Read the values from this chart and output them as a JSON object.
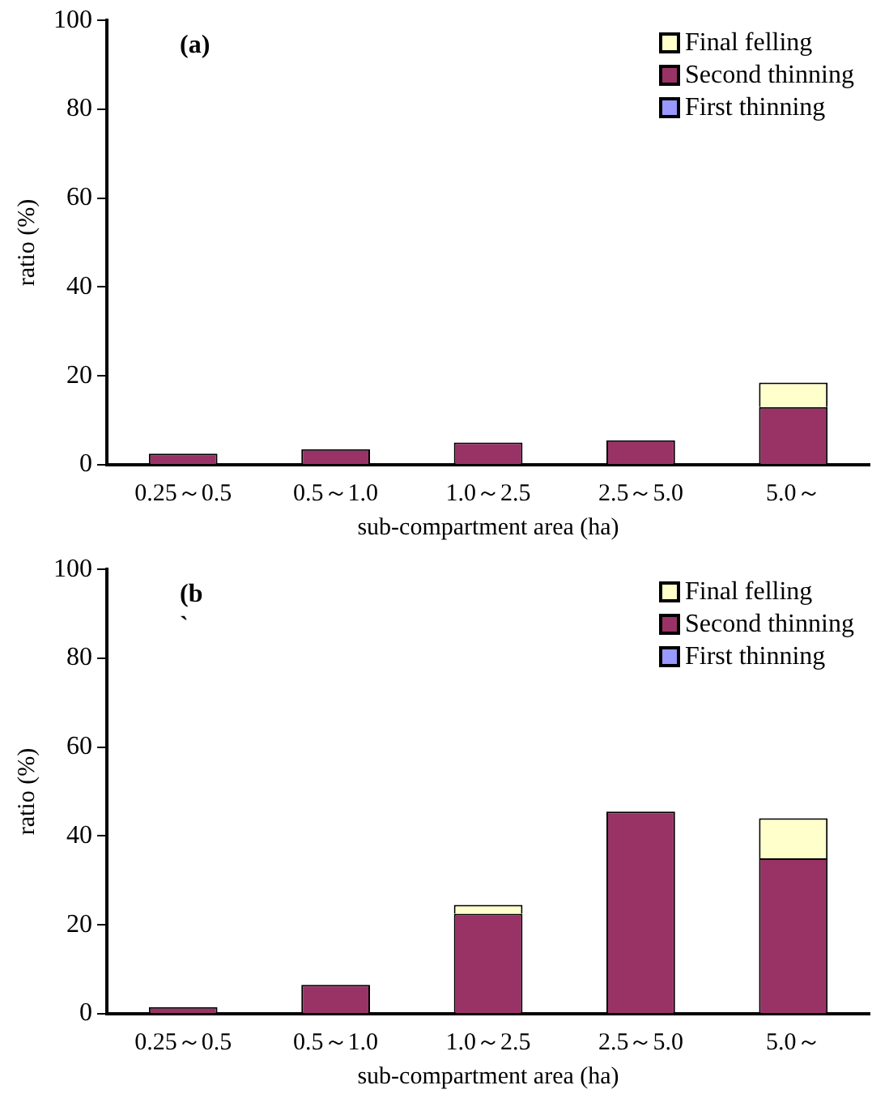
{
  "chart_data": [
    {
      "type": "bar",
      "stacked": true,
      "annotations": [
        "(a)"
      ],
      "xlabel": "sub-compartment area (ha)",
      "ylabel": "ratio (%)",
      "categories": [
        "0.25～0.5",
        "0.5～1.0",
        "1.0～2.5",
        "2.5～5.0",
        "5.0～"
      ],
      "ylim": [
        0,
        100
      ],
      "yticks": [
        0,
        20,
        40,
        60,
        80,
        100
      ],
      "legend": "top right",
      "series": [
        {
          "name": "First thinning",
          "color": "#9999ff",
          "values": [
            0,
            0,
            0,
            0,
            0
          ]
        },
        {
          "name": "Second thinning",
          "color": "#993366",
          "values": [
            2.5,
            3.5,
            5,
            5.5,
            13
          ]
        },
        {
          "name": "Final felling",
          "color": "#ffffcc",
          "values": [
            0,
            0,
            0,
            0,
            5.5
          ]
        }
      ]
    },
    {
      "type": "bar",
      "stacked": true,
      "annotations": [
        "(b",
        "`"
      ],
      "xlabel": "sub-compartment area (ha)",
      "ylabel": "ratio (%)",
      "categories": [
        "0.25～0.5",
        "0.5～1.0",
        "1.0～2.5",
        "2.5～5.0",
        "5.0～"
      ],
      "ylim": [
        0,
        100
      ],
      "yticks": [
        0,
        20,
        40,
        60,
        80,
        100
      ],
      "legend": "top right",
      "series": [
        {
          "name": "First thinning",
          "color": "#9999ff",
          "values": [
            0,
            0,
            0,
            0,
            0
          ]
        },
        {
          "name": "Second thinning",
          "color": "#993366",
          "values": [
            1.5,
            6.5,
            22.5,
            45.5,
            35
          ]
        },
        {
          "name": "Final felling",
          "color": "#ffffcc",
          "values": [
            0,
            0,
            2,
            0,
            9
          ]
        }
      ]
    }
  ]
}
